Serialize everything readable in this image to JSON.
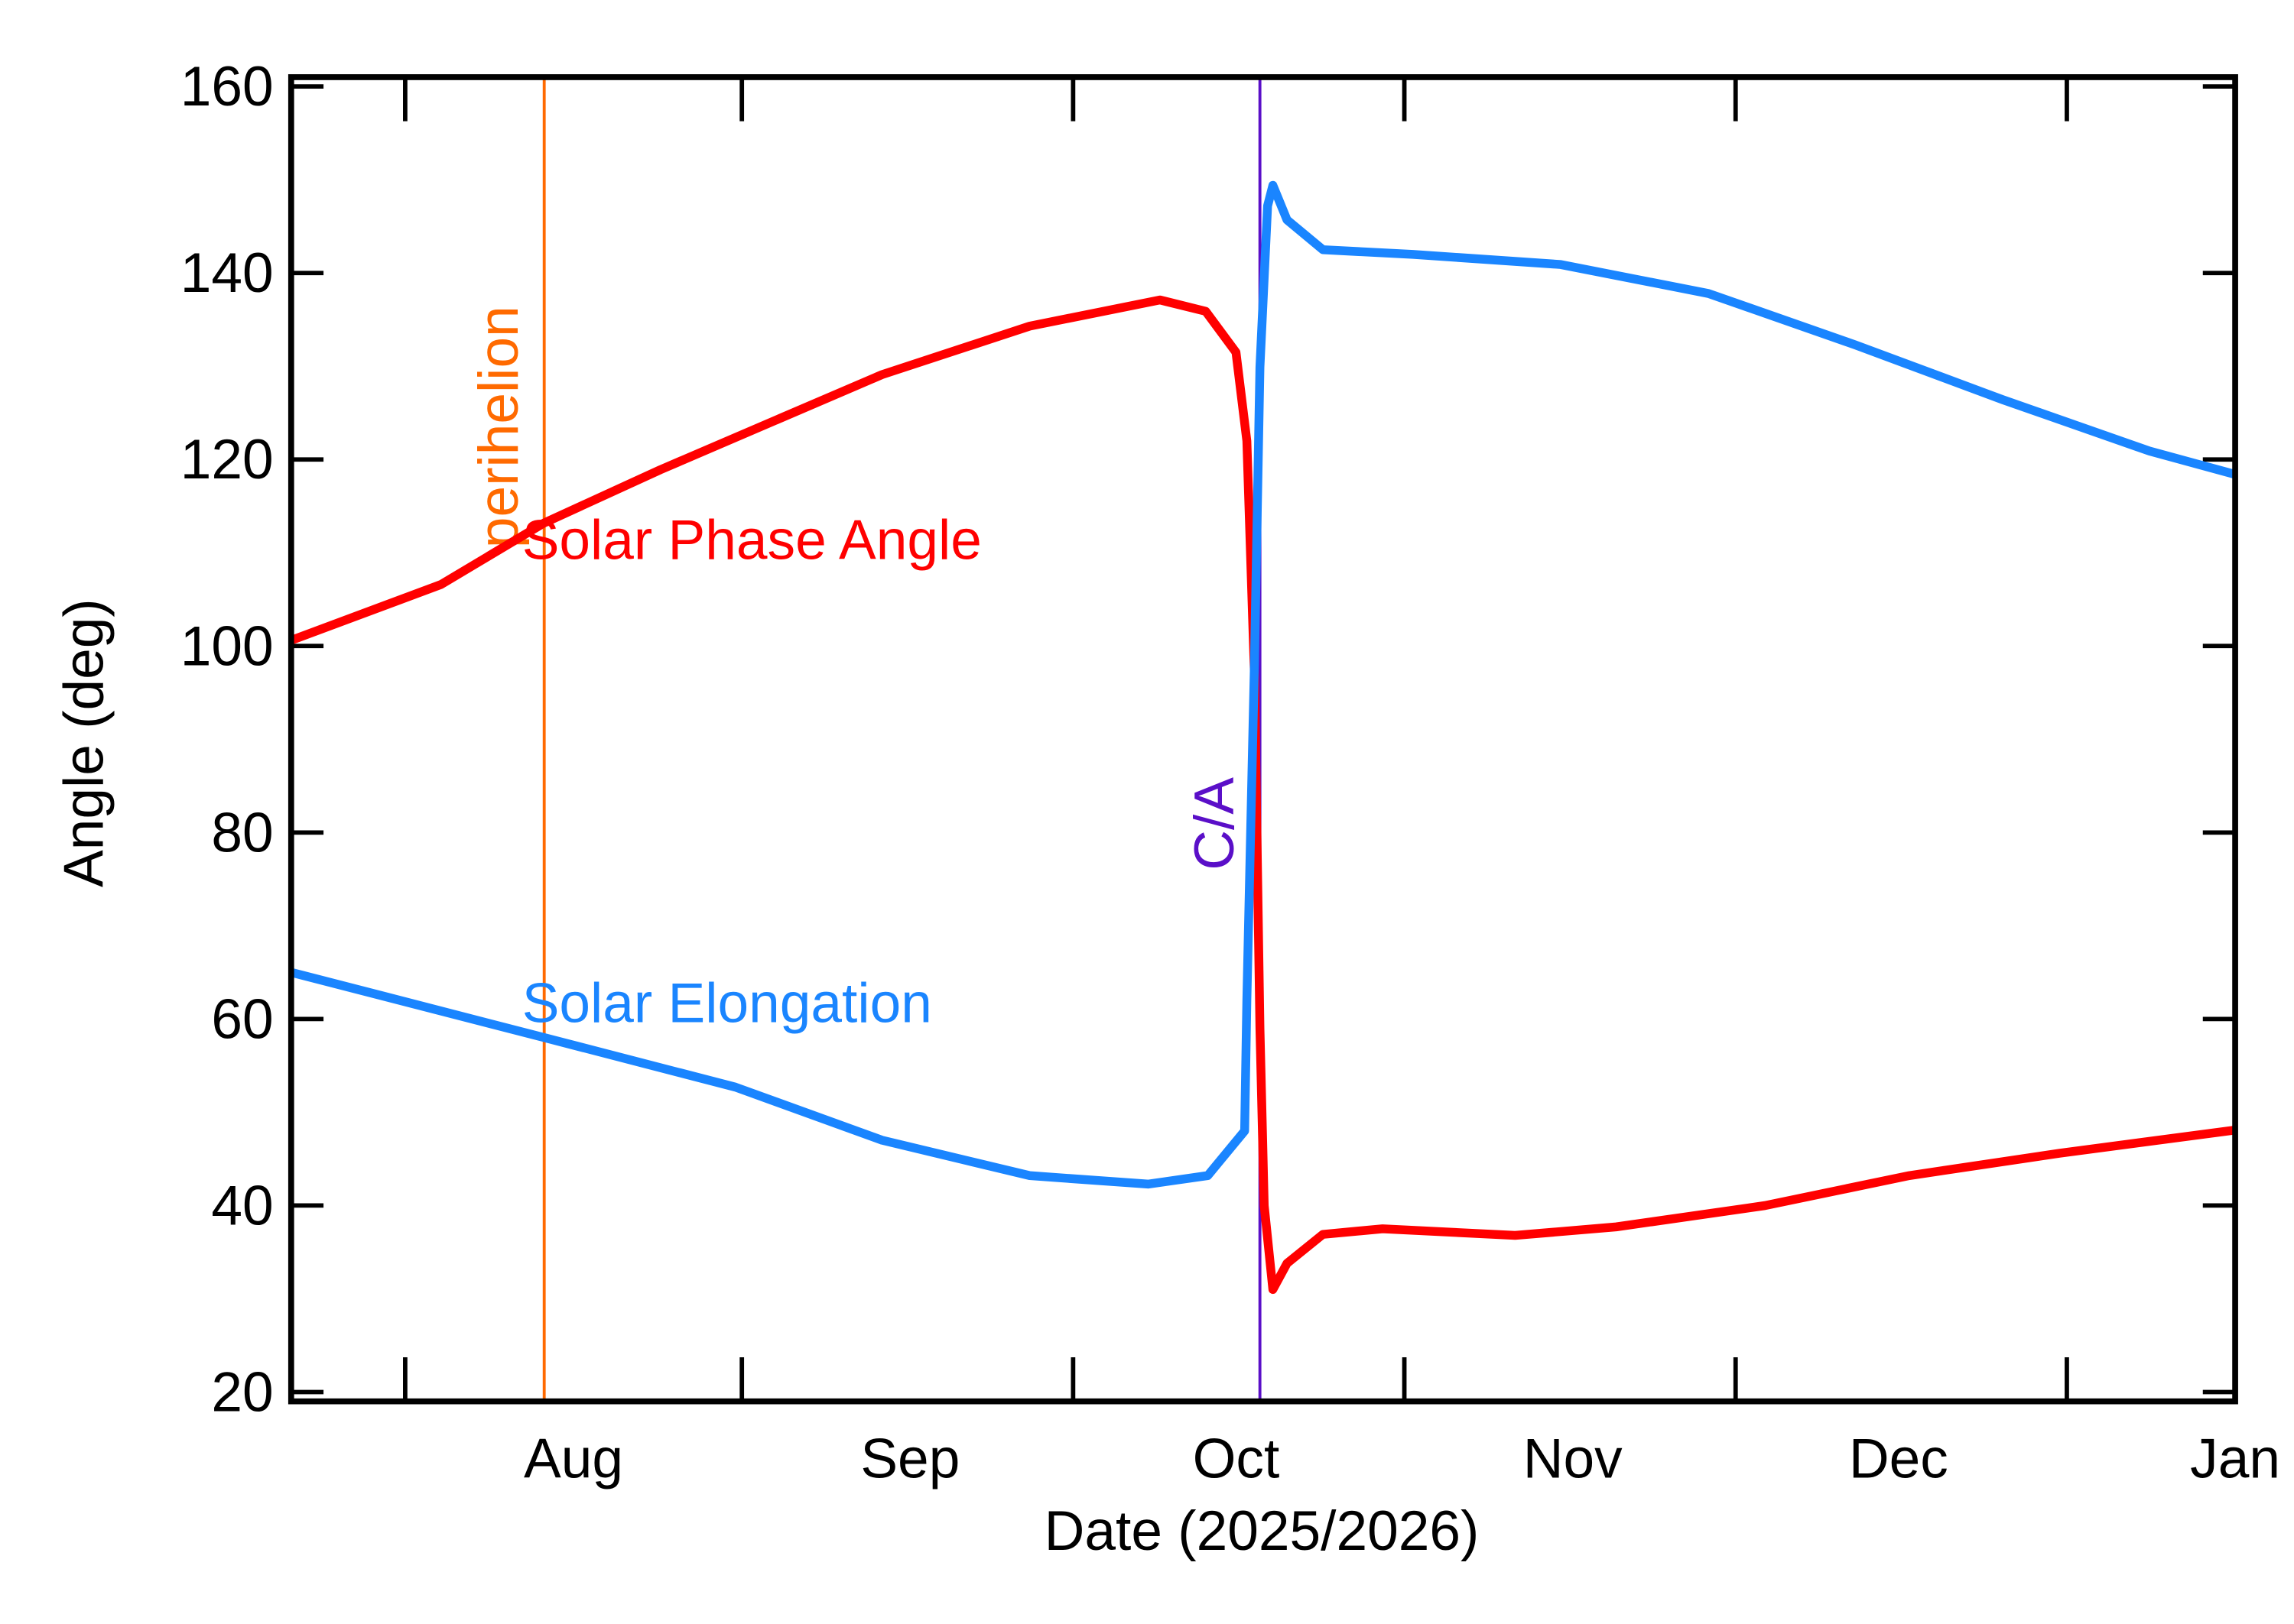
{
  "chart_data": {
    "type": "line",
    "x_label": "Date (2025/2026)",
    "y_label": "Angle (deg)",
    "xlim": [
      187,
      366
    ],
    "ylim": [
      19,
      161
    ],
    "xticks": [
      {
        "value": 197.5,
        "label": null
      },
      {
        "value": 213,
        "label": "Aug"
      },
      {
        "value": 228.5,
        "label": null
      },
      {
        "value": 244,
        "label": "Sep"
      },
      {
        "value": 259,
        "label": null
      },
      {
        "value": 274,
        "label": "Oct"
      },
      {
        "value": 289.5,
        "label": null
      },
      {
        "value": 305,
        "label": "Nov"
      },
      {
        "value": 320,
        "label": null
      },
      {
        "value": 335,
        "label": "Dec"
      },
      {
        "value": 350.5,
        "label": null
      },
      {
        "value": 366,
        "label": "Jan"
      }
    ],
    "yticks": [
      20,
      40,
      60,
      80,
      100,
      120,
      140,
      160
    ],
    "series": [
      {
        "name": "Solar Phase Angle",
        "color": "#ff0000",
        "x": [
          187,
          200.8,
          210.3,
          221,
          241.4,
          255,
          267,
          271.2,
          274,
          275,
          275.7,
          276.2,
          276.6,
          277.4,
          278.7,
          282,
          287.5,
          299.7,
          309,
          322.7,
          336,
          349.8,
          366
        ],
        "values": [
          100.6,
          106.6,
          113.2,
          118.9,
          129.1,
          134.3,
          137.1,
          135.9,
          131.5,
          122,
          96.8,
          59,
          40,
          31,
          33.8,
          36.9,
          37.5,
          36.8,
          37.7,
          40,
          43.2,
          45.6,
          48.1
        ]
      },
      {
        "name": "Solar Elongation",
        "color": "#1a85ff",
        "x": [
          187,
          210.3,
          227.9,
          241.4,
          255,
          265.9,
          271.4,
          274.8,
          275,
          275.7,
          276.2,
          276.9,
          277.4,
          278.7,
          282,
          290.3,
          303.9,
          317.5,
          331,
          344.6,
          358.1,
          366
        ],
        "values": [
          65,
          58,
          52.7,
          47,
          43.2,
          42.3,
          43.2,
          48,
          62,
          98.4,
          129.9,
          147.2,
          149.4,
          145.7,
          142.5,
          142,
          140.9,
          137.8,
          132.3,
          126.4,
          120.9,
          118.4
        ]
      }
    ],
    "events": [
      {
        "label": "perihelion",
        "x": 210.3,
        "color": "#ff6a00"
      },
      {
        "label": "C/A",
        "x": 276.2,
        "color": "#5a0fc8"
      }
    ]
  }
}
